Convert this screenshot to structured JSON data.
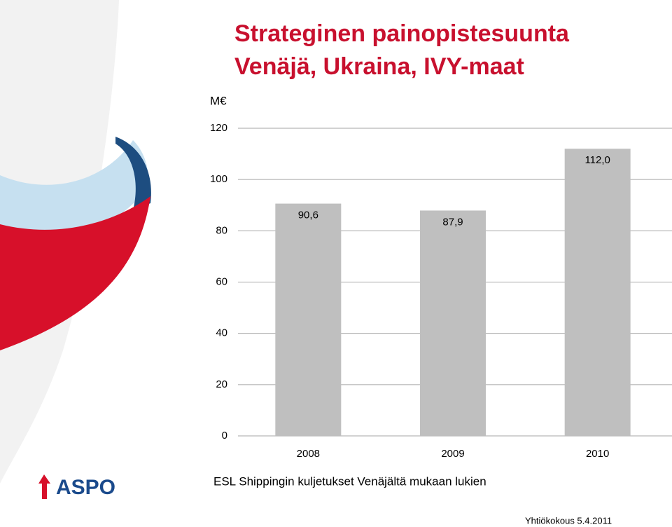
{
  "chart_data": {
    "type": "bar",
    "title": "Strateginen painopistesuunta",
    "subtitle": "Venäjä, Ukraina, IVY-maat",
    "y_label": "M€",
    "categories": [
      "2008",
      "2009",
      "2010"
    ],
    "values": [
      90.6,
      87.9,
      112.0
    ],
    "value_labels": [
      "90,6",
      "87,9",
      "112,0"
    ],
    "color": "#bfbfbf",
    "ylim": [
      0,
      120
    ],
    "yticks": [
      0,
      20,
      40,
      60,
      80,
      100,
      120
    ],
    "grid": true,
    "caption": "ESL Shippingin kuljetukset Venäjältä mukaan lukien"
  },
  "logo": "ASPO",
  "footer": "Yhtiökokous 5.4.2011"
}
